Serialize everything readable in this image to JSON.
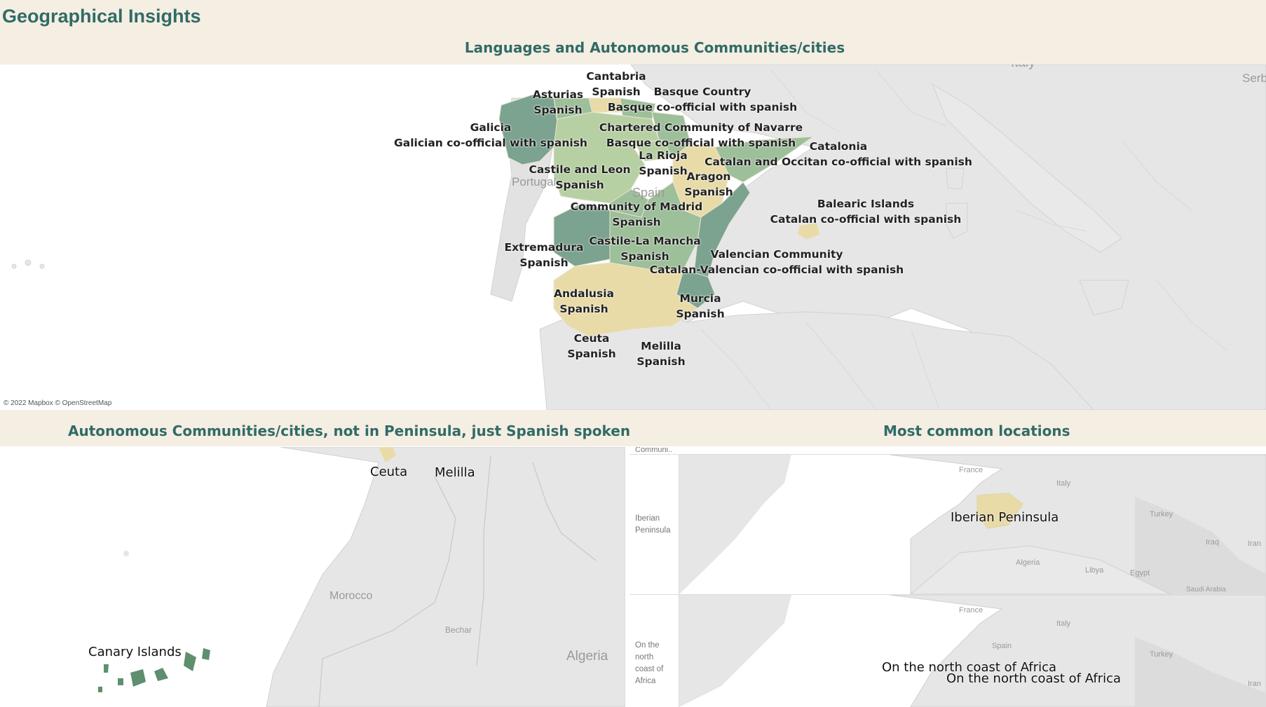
{
  "page": {
    "title": "Geographical Insights"
  },
  "top_map": {
    "title": "Languages and Autonomous Communities/cities",
    "attribution": "© 2022 Mapbox © OpenStreetMap",
    "background_labels": {
      "italy": "Italy",
      "serbia": "Serbi",
      "portugal": "Portugal",
      "spain": "Spain"
    },
    "regions": [
      {
        "name": "Cantabria",
        "language": "Spanish"
      },
      {
        "name": "Asturias",
        "language": "Spanish"
      },
      {
        "name": "Basque Country",
        "language": "Basque co-official with spanish"
      },
      {
        "name": "Galicia",
        "language": "Galician co-official with spanish"
      },
      {
        "name": "Chartered Community of Navarre",
        "language": "Basque co-official with spanish"
      },
      {
        "name": "Catalonia",
        "language": "Catalan and Occitan co-official with spanish"
      },
      {
        "name": "La Rioja",
        "language": "Spanish"
      },
      {
        "name": "Castile and Leon",
        "language": "Spanish"
      },
      {
        "name": "Aragon",
        "language": "Spanish"
      },
      {
        "name": "Balearic Islands",
        "language": "Catalan co-official with spanish"
      },
      {
        "name": "Community of Madrid",
        "language": "Spanish"
      },
      {
        "name": "Castile-La Mancha",
        "language": "Spanish"
      },
      {
        "name": "Extremadura",
        "language": "Spanish"
      },
      {
        "name": "Valencian Community",
        "language": "Catalan-Valencian co-official with spanish"
      },
      {
        "name": "Andalusia",
        "language": "Spanish"
      },
      {
        "name": "Murcia",
        "language": "Spanish"
      },
      {
        "name": "Ceuta",
        "language": "Spanish"
      },
      {
        "name": "Melilla",
        "language": "Spanish"
      }
    ],
    "colors": {
      "dark_green": "#7ba38f",
      "mid_green": "#9dbf99",
      "light_green": "#b7d0a3",
      "sand": "#e8dba8",
      "land": "#e8e8e8"
    }
  },
  "bottom_left_map": {
    "title": "Autonomous Communities/cities, not in Peninsula, just Spanish spoken",
    "labels": {
      "ceuta": "Ceuta",
      "melilla": "Melilla",
      "canary": "Canary Islands"
    },
    "background_labels": {
      "morocco": "Morocco",
      "bechar": "Bechar",
      "algeria": "Algeria"
    }
  },
  "bottom_right_map": {
    "title": "Most common locations",
    "column_header": "Communi..",
    "rows": [
      {
        "header": "Iberian Peninsula",
        "label": "Iberian Peninsula"
      },
      {
        "header": "On the north coast of Africa",
        "label": "On the north coast of Africa",
        "label2": "On the north coast of Africa"
      }
    ],
    "background_labels": {
      "france": "France",
      "italy": "Italy",
      "spain": "Spain",
      "turkey": "Turkey",
      "iraq": "Iraq",
      "iran": "Iran",
      "algeria": "Algeria",
      "libya": "Libya",
      "egypt": "Egypt",
      "saudi": "Saudi Arabia"
    }
  }
}
